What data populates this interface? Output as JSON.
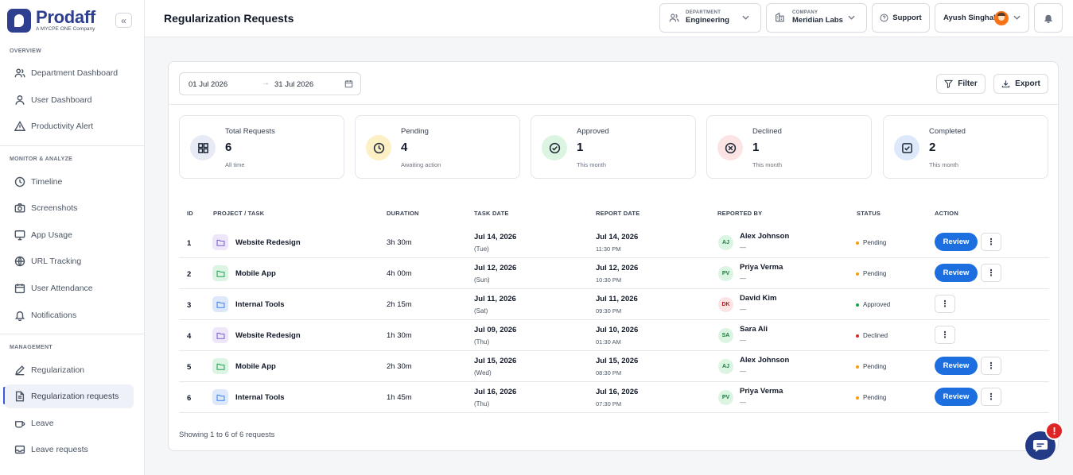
{
  "brand": {
    "name": "Prodaff",
    "tagline": "A MYCPE ONE Company",
    "collapse": "«"
  },
  "sidebar": {
    "sections": [
      {
        "label": "OVERVIEW"
      },
      {
        "label": "MONITOR & ANALYZE"
      },
      {
        "label": "MANAGEMENT"
      }
    ],
    "items": [
      {
        "label": "Department Dashboard",
        "icon": "users-icon"
      },
      {
        "label": "User Dashboard",
        "icon": "user-icon"
      },
      {
        "label": "Productivity Alert",
        "icon": "warning-icon"
      },
      {
        "label": "Timeline",
        "icon": "clock-icon"
      },
      {
        "label": "Screenshots",
        "icon": "camera-icon"
      },
      {
        "label": "App Usage",
        "icon": "monitor-icon"
      },
      {
        "label": "URL Tracking",
        "icon": "globe-icon"
      },
      {
        "label": "User Attendance",
        "icon": "calendar-icon"
      },
      {
        "label": "Notifications",
        "icon": "bell-icon"
      },
      {
        "label": "Regularization",
        "icon": "pencil-icon"
      },
      {
        "label": "Regularization requests",
        "icon": "document-icon",
        "active": true
      },
      {
        "label": "Leave",
        "icon": "coffee-icon"
      },
      {
        "label": "Leave requests",
        "icon": "inbox-icon"
      }
    ]
  },
  "header": {
    "title": "Regularization Requests",
    "department": {
      "caption": "DEPARTMENT",
      "value": "Engineering"
    },
    "company": {
      "caption": "COMPANY",
      "value": "Meridian Labs"
    },
    "support": "Support",
    "user": "Ayush Singhal"
  },
  "filters": {
    "date_from": "01 Jul 2026",
    "date_to": "31 Jul 2026",
    "arrow": "→",
    "filter_label": "Filter",
    "export_label": "Export"
  },
  "stats": [
    {
      "label": "Total Requests",
      "value": "6",
      "sub": "All time",
      "icon": "grid-icon",
      "bg": "#e8eaf6"
    },
    {
      "label": "Pending",
      "value": "4",
      "sub": "Awaiting action",
      "icon": "clock-icon",
      "bg": "#fdf0c4"
    },
    {
      "label": "Approved",
      "value": "1",
      "sub": "This month",
      "icon": "check-circle-icon",
      "bg": "#dcf5e3"
    },
    {
      "label": "Declined",
      "value": "1",
      "sub": "This month",
      "icon": "x-circle-icon",
      "bg": "#fde4e4"
    },
    {
      "label": "Completed",
      "value": "2",
      "sub": "This month",
      "icon": "check-square-icon",
      "bg": "#dde9fb"
    }
  ],
  "table": {
    "headers": {
      "id": "ID",
      "project": "PROJECT / TASK",
      "duration": "DURATION",
      "task_date": "TASK DATE",
      "report_date": "REPORT DATE",
      "reported_by": "REPORTED BY",
      "status": "STATUS",
      "action": "ACTION"
    },
    "rows": [
      {
        "id": "1",
        "project": "Website Redesign",
        "duration": "3h 30m",
        "task_date": "Jul 14, 2026",
        "task_day": "(Tue)",
        "report_date": "Jul 14, 2026",
        "report_time": "11:30 PM",
        "initials": "AJ",
        "reporter": "Alex Johnson",
        "reporter_sub": "—",
        "status": "Pending",
        "review": "Review",
        "kebab": "⋮"
      },
      {
        "id": "2",
        "project": "Mobile App",
        "duration": "4h 00m",
        "task_date": "Jul 12, 2026",
        "task_day": "(Sun)",
        "report_date": "Jul 12, 2026",
        "report_time": "10:30 PM",
        "initials": "PV",
        "reporter": "Priya Verma",
        "reporter_sub": "—",
        "status": "Pending",
        "review": "Review",
        "kebab": "⋮"
      },
      {
        "id": "3",
        "project": "Internal Tools",
        "duration": "2h 15m",
        "task_date": "Jul 11, 2026",
        "task_day": "(Sat)",
        "report_date": "Jul 11, 2026",
        "report_time": "09:30 PM",
        "initials": "DK",
        "reporter": "David Kim",
        "reporter_sub": "—",
        "status": "Approved",
        "review": "",
        "kebab": "⋮"
      },
      {
        "id": "4",
        "project": "Website Redesign",
        "duration": "1h 30m",
        "task_date": "Jul 09, 2026",
        "task_day": "(Thu)",
        "report_date": "Jul 10, 2026",
        "report_time": "01:30 AM",
        "initials": "SA",
        "reporter": "Sara Ali",
        "reporter_sub": "—",
        "status": "Declined",
        "review": "",
        "kebab": "⋮"
      },
      {
        "id": "5",
        "project": "Mobile App",
        "duration": "2h 30m",
        "task_date": "Jul 15, 2026",
        "task_day": "(Wed)",
        "report_date": "Jul 15, 2026",
        "report_time": "08:30 PM",
        "initials": "AJ",
        "reporter": "Alex Johnson",
        "reporter_sub": "—",
        "status": "Pending",
        "review": "Review",
        "kebab": "⋮"
      },
      {
        "id": "6",
        "project": "Internal Tools",
        "duration": "1h 45m",
        "task_date": "Jul 16, 2026",
        "task_day": "(Thu)",
        "report_date": "Jul 16, 2026",
        "report_time": "07:30 PM",
        "initials": "PV",
        "reporter": "Priya Verma",
        "reporter_sub": "—",
        "status": "Pending",
        "review": "Review",
        "kebab": "⋮"
      }
    ],
    "footer": "Showing 1 to 6 of 6 requests"
  },
  "chat": {
    "badge": "!"
  },
  "colors": {
    "brand": "#2e3f8f",
    "review_button": "#1d6fe0",
    "pending": "#f59e0b",
    "approved": "#16a34a",
    "declined": "#dc2626"
  }
}
